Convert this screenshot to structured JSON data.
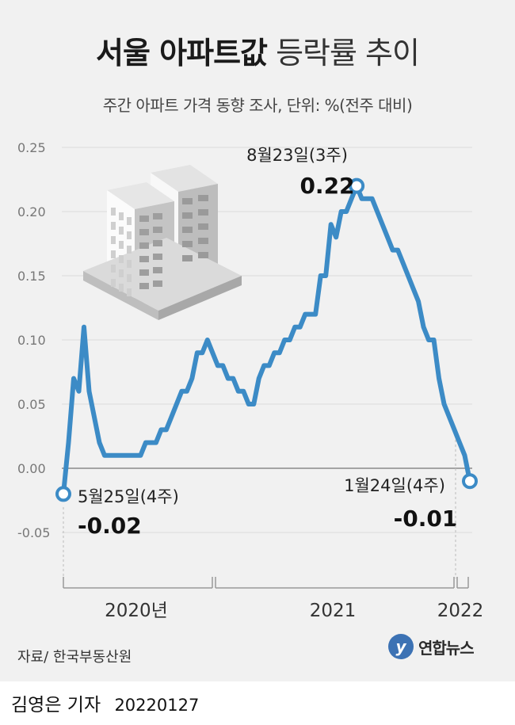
{
  "title_bold": "서울 아파트값",
  "title_light": "등락률 추이",
  "subtitle": "주간 아파트 가격 동향 조사, 단위: %(전주 대비)",
  "source": "자료/ 한국부동산원",
  "logo_mark": "y",
  "logo_text": "연합뉴스",
  "byline": "김영은 기자",
  "byline_date": "20220127",
  "colors": {
    "line": "#3c8bc6",
    "background": "#f1f1f1",
    "grid": "#dcdcdc"
  },
  "icons": [
    "apartment-buildings-icon"
  ],
  "chart_data": {
    "type": "line",
    "title": "서울 아파트값 등락률 추이",
    "ylabel": "%(전주 대비)",
    "ylim": [
      -0.05,
      0.25
    ],
    "yticks": [
      0.25,
      0.2,
      0.15,
      0.1,
      0.05,
      0.0,
      -0.05
    ],
    "ytick_labels": [
      "0.25",
      "0.20",
      "0.15",
      "0.10",
      "0.05",
      "0.00",
      "-0.05"
    ],
    "grid": true,
    "x_unit": "week index from 2020-05-25",
    "years": [
      {
        "label": "2020년",
        "start": 0,
        "end": 32
      },
      {
        "label": "2021",
        "start": 32,
        "end": 84
      },
      {
        "label": "2022",
        "start": 84,
        "end": 87
      }
    ],
    "series": [
      {
        "values": [
          -0.02,
          0.02,
          0.07,
          0.06,
          0.11,
          0.06,
          0.04,
          0.02,
          0.01,
          0.01,
          0.01,
          0.01,
          0.01,
          0.01,
          0.01,
          0.01,
          0.02,
          0.02,
          0.02,
          0.03,
          0.03,
          0.04,
          0.05,
          0.06,
          0.06,
          0.07,
          0.09,
          0.09,
          0.1,
          0.09,
          0.08,
          0.08,
          0.07,
          0.07,
          0.06,
          0.06,
          0.05,
          0.05,
          0.07,
          0.08,
          0.08,
          0.09,
          0.09,
          0.1,
          0.1,
          0.11,
          0.11,
          0.12,
          0.12,
          0.12,
          0.15,
          0.15,
          0.19,
          0.18,
          0.2,
          0.2,
          0.21,
          0.22,
          0.21,
          0.21,
          0.21,
          0.2,
          0.19,
          0.18,
          0.17,
          0.17,
          0.16,
          0.15,
          0.14,
          0.13,
          0.11,
          0.1,
          0.1,
          0.07,
          0.05,
          0.04,
          0.03,
          0.02,
          0.01,
          -0.01
        ]
      }
    ],
    "annotations": [
      {
        "index": 0,
        "label": "5월25일(4주)",
        "value_label": "-0.02"
      },
      {
        "index": 57,
        "label": "8월23일(3주)",
        "value_label": "0.22"
      },
      {
        "index": 79,
        "label": "1월24일(4주)",
        "value_label": "-0.01"
      }
    ]
  }
}
